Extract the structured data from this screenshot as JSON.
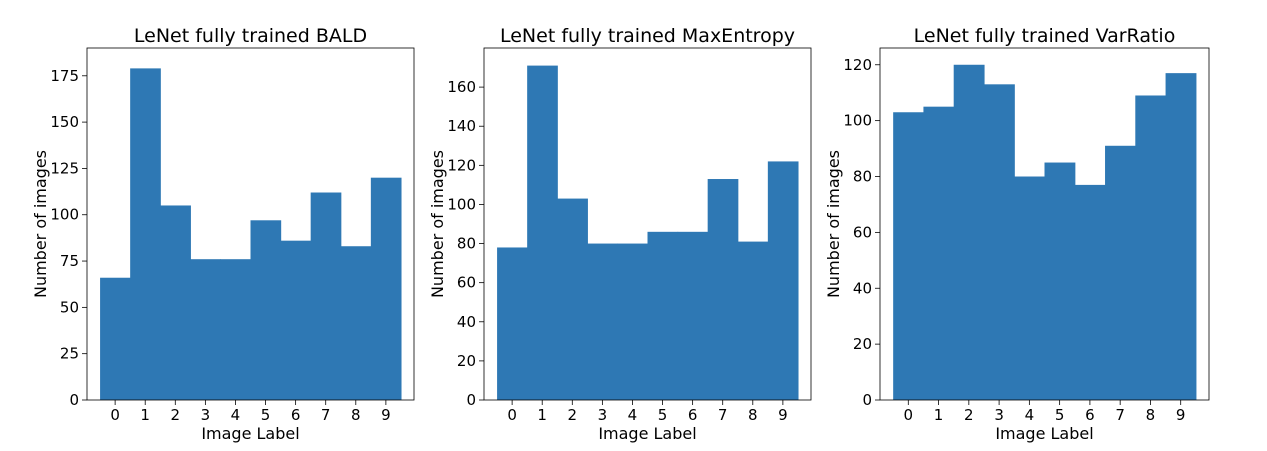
{
  "chart_data": [
    {
      "type": "bar",
      "title": "LeNet fully trained BALD",
      "xlabel": "Image Label",
      "ylabel": "Number of images",
      "categories": [
        "0",
        "1",
        "2",
        "3",
        "4",
        "5",
        "6",
        "7",
        "8",
        "9"
      ],
      "values": [
        66,
        179,
        105,
        76,
        76,
        97,
        86,
        112,
        83,
        120
      ],
      "ylim": [
        0,
        190
      ],
      "yticks": [
        0,
        25,
        50,
        75,
        100,
        125,
        150,
        175
      ],
      "bar_color": "#2e78b4",
      "grid": false
    },
    {
      "type": "bar",
      "title": "LeNet fully trained MaxEntropy",
      "xlabel": "Image Label",
      "ylabel": "Number of images",
      "categories": [
        "0",
        "1",
        "2",
        "3",
        "4",
        "5",
        "6",
        "7",
        "8",
        "9"
      ],
      "values": [
        78,
        171,
        103,
        80,
        80,
        86,
        86,
        113,
        81,
        122
      ],
      "ylim": [
        0,
        180
      ],
      "yticks": [
        0,
        20,
        40,
        60,
        80,
        100,
        120,
        140,
        160
      ],
      "bar_color": "#2e78b4",
      "grid": false
    },
    {
      "type": "bar",
      "title": "LeNet fully trained VarRatio",
      "xlabel": "Image Label",
      "ylabel": "Number of images",
      "categories": [
        "0",
        "1",
        "2",
        "3",
        "4",
        "5",
        "6",
        "7",
        "8",
        "9"
      ],
      "values": [
        103,
        105,
        120,
        113,
        80,
        85,
        77,
        91,
        109,
        117
      ],
      "ylim": [
        0,
        126
      ],
      "yticks": [
        0,
        20,
        40,
        60,
        80,
        100,
        120
      ],
      "bar_color": "#2e78b4",
      "grid": false
    }
  ]
}
